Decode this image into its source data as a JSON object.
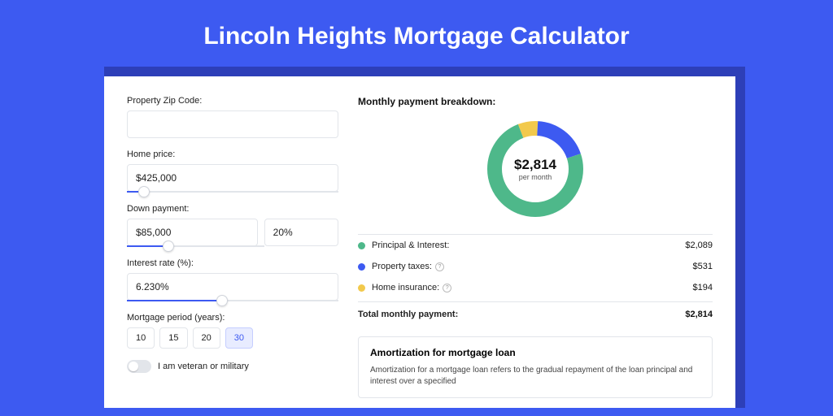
{
  "title": "Lincoln Heights Mortgage Calculator",
  "colors": {
    "page_bg": "#3d5af1",
    "shadow_bg": "#2d3fb8",
    "panel_bg": "#ffffff",
    "accent": "#3d5af1",
    "border": "#e2e5ea"
  },
  "form": {
    "zip": {
      "label": "Property Zip Code:",
      "value": ""
    },
    "home_price": {
      "label": "Home price:",
      "value": "$425,000",
      "slider_pct": 8
    },
    "down_payment": {
      "label": "Down payment:",
      "amount": "$85,000",
      "percent": "20%",
      "slider_pct": 30
    },
    "interest": {
      "label": "Interest rate (%):",
      "value": "6.230%",
      "slider_pct": 45
    },
    "period": {
      "label": "Mortgage period (years):",
      "options": [
        "10",
        "15",
        "20",
        "30"
      ],
      "selected": "30"
    },
    "veteran": {
      "label": "I am veteran or military",
      "checked": false
    }
  },
  "breakdown": {
    "heading": "Monthly payment breakdown:",
    "center_value": "$2,814",
    "center_sub": "per month",
    "donut": {
      "slices": [
        {
          "key": "principal_interest",
          "value": 2089,
          "color": "#4eb88a"
        },
        {
          "key": "property_taxes",
          "value": 531,
          "color": "#3d5af1"
        },
        {
          "key": "home_insurance",
          "value": 194,
          "color": "#f2c94c"
        }
      ],
      "background": "#ffffff",
      "stroke_width": 18,
      "radius": 50
    },
    "items": [
      {
        "label": "Principal & Interest:",
        "amount": "$2,089",
        "color": "#4eb88a",
        "info": false
      },
      {
        "label": "Property taxes:",
        "amount": "$531",
        "color": "#3d5af1",
        "info": true
      },
      {
        "label": "Home insurance:",
        "amount": "$194",
        "color": "#f2c94c",
        "info": true
      }
    ],
    "total": {
      "label": "Total monthly payment:",
      "amount": "$2,814"
    }
  },
  "amortization": {
    "title": "Amortization for mortgage loan",
    "text": "Amortization for a mortgage loan refers to the gradual repayment of the loan principal and interest over a specified"
  }
}
